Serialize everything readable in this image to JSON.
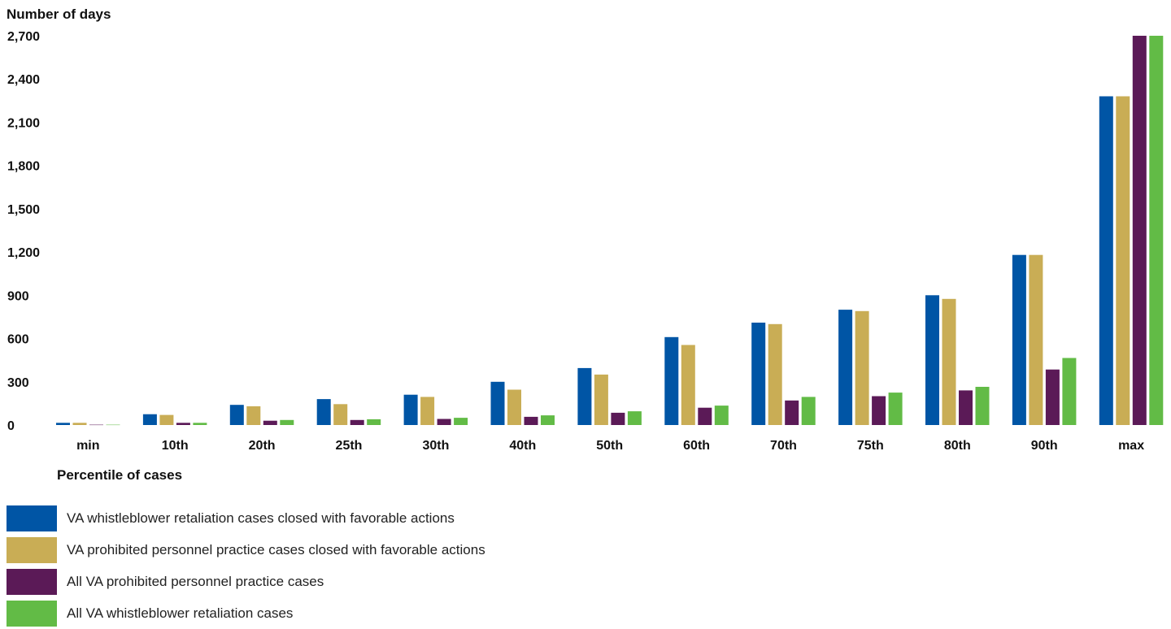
{
  "chart_data": {
    "type": "bar",
    "ylabel": "Number of days",
    "xlabel": "Percentile of cases",
    "ylim": [
      0,
      2700
    ],
    "yticks": [
      "0",
      "300",
      "600",
      "900",
      "1,200",
      "1,500",
      "1,800",
      "2,100",
      "2,400",
      "2,700"
    ],
    "ytick_values": [
      0,
      300,
      600,
      900,
      1200,
      1500,
      1800,
      2100,
      2400,
      2700
    ],
    "categories": [
      "min",
      "10th",
      "20th",
      "25th",
      "30th",
      "40th",
      "50th",
      "60th",
      "70th",
      "75th",
      "80th",
      "90th",
      "max"
    ],
    "series": [
      {
        "name": "VA whistleblower retaliation cases closed with favorable actions",
        "color": "#0055a5",
        "values": [
          15,
          75,
          140,
          180,
          210,
          300,
          395,
          610,
          710,
          800,
          900,
          1180,
          2280
        ]
      },
      {
        "name": "VA prohibited personnel practice cases closed with favorable actions",
        "color": "#c9ad55",
        "values": [
          15,
          70,
          130,
          145,
          195,
          245,
          350,
          555,
          700,
          790,
          875,
          1180,
          2280
        ]
      },
      {
        "name": "All VA prohibited personnel practice cases",
        "color": "#5b1a57",
        "values": [
          2,
          15,
          30,
          35,
          42,
          57,
          85,
          120,
          170,
          200,
          240,
          385,
          2700
        ]
      },
      {
        "name": "All VA whistleblower retaliation cases",
        "color": "#62bb46",
        "values": [
          2,
          15,
          35,
          40,
          50,
          67,
          95,
          135,
          195,
          225,
          265,
          465,
          2700
        ]
      }
    ],
    "grid": false,
    "legend_position": "bottom-left"
  }
}
